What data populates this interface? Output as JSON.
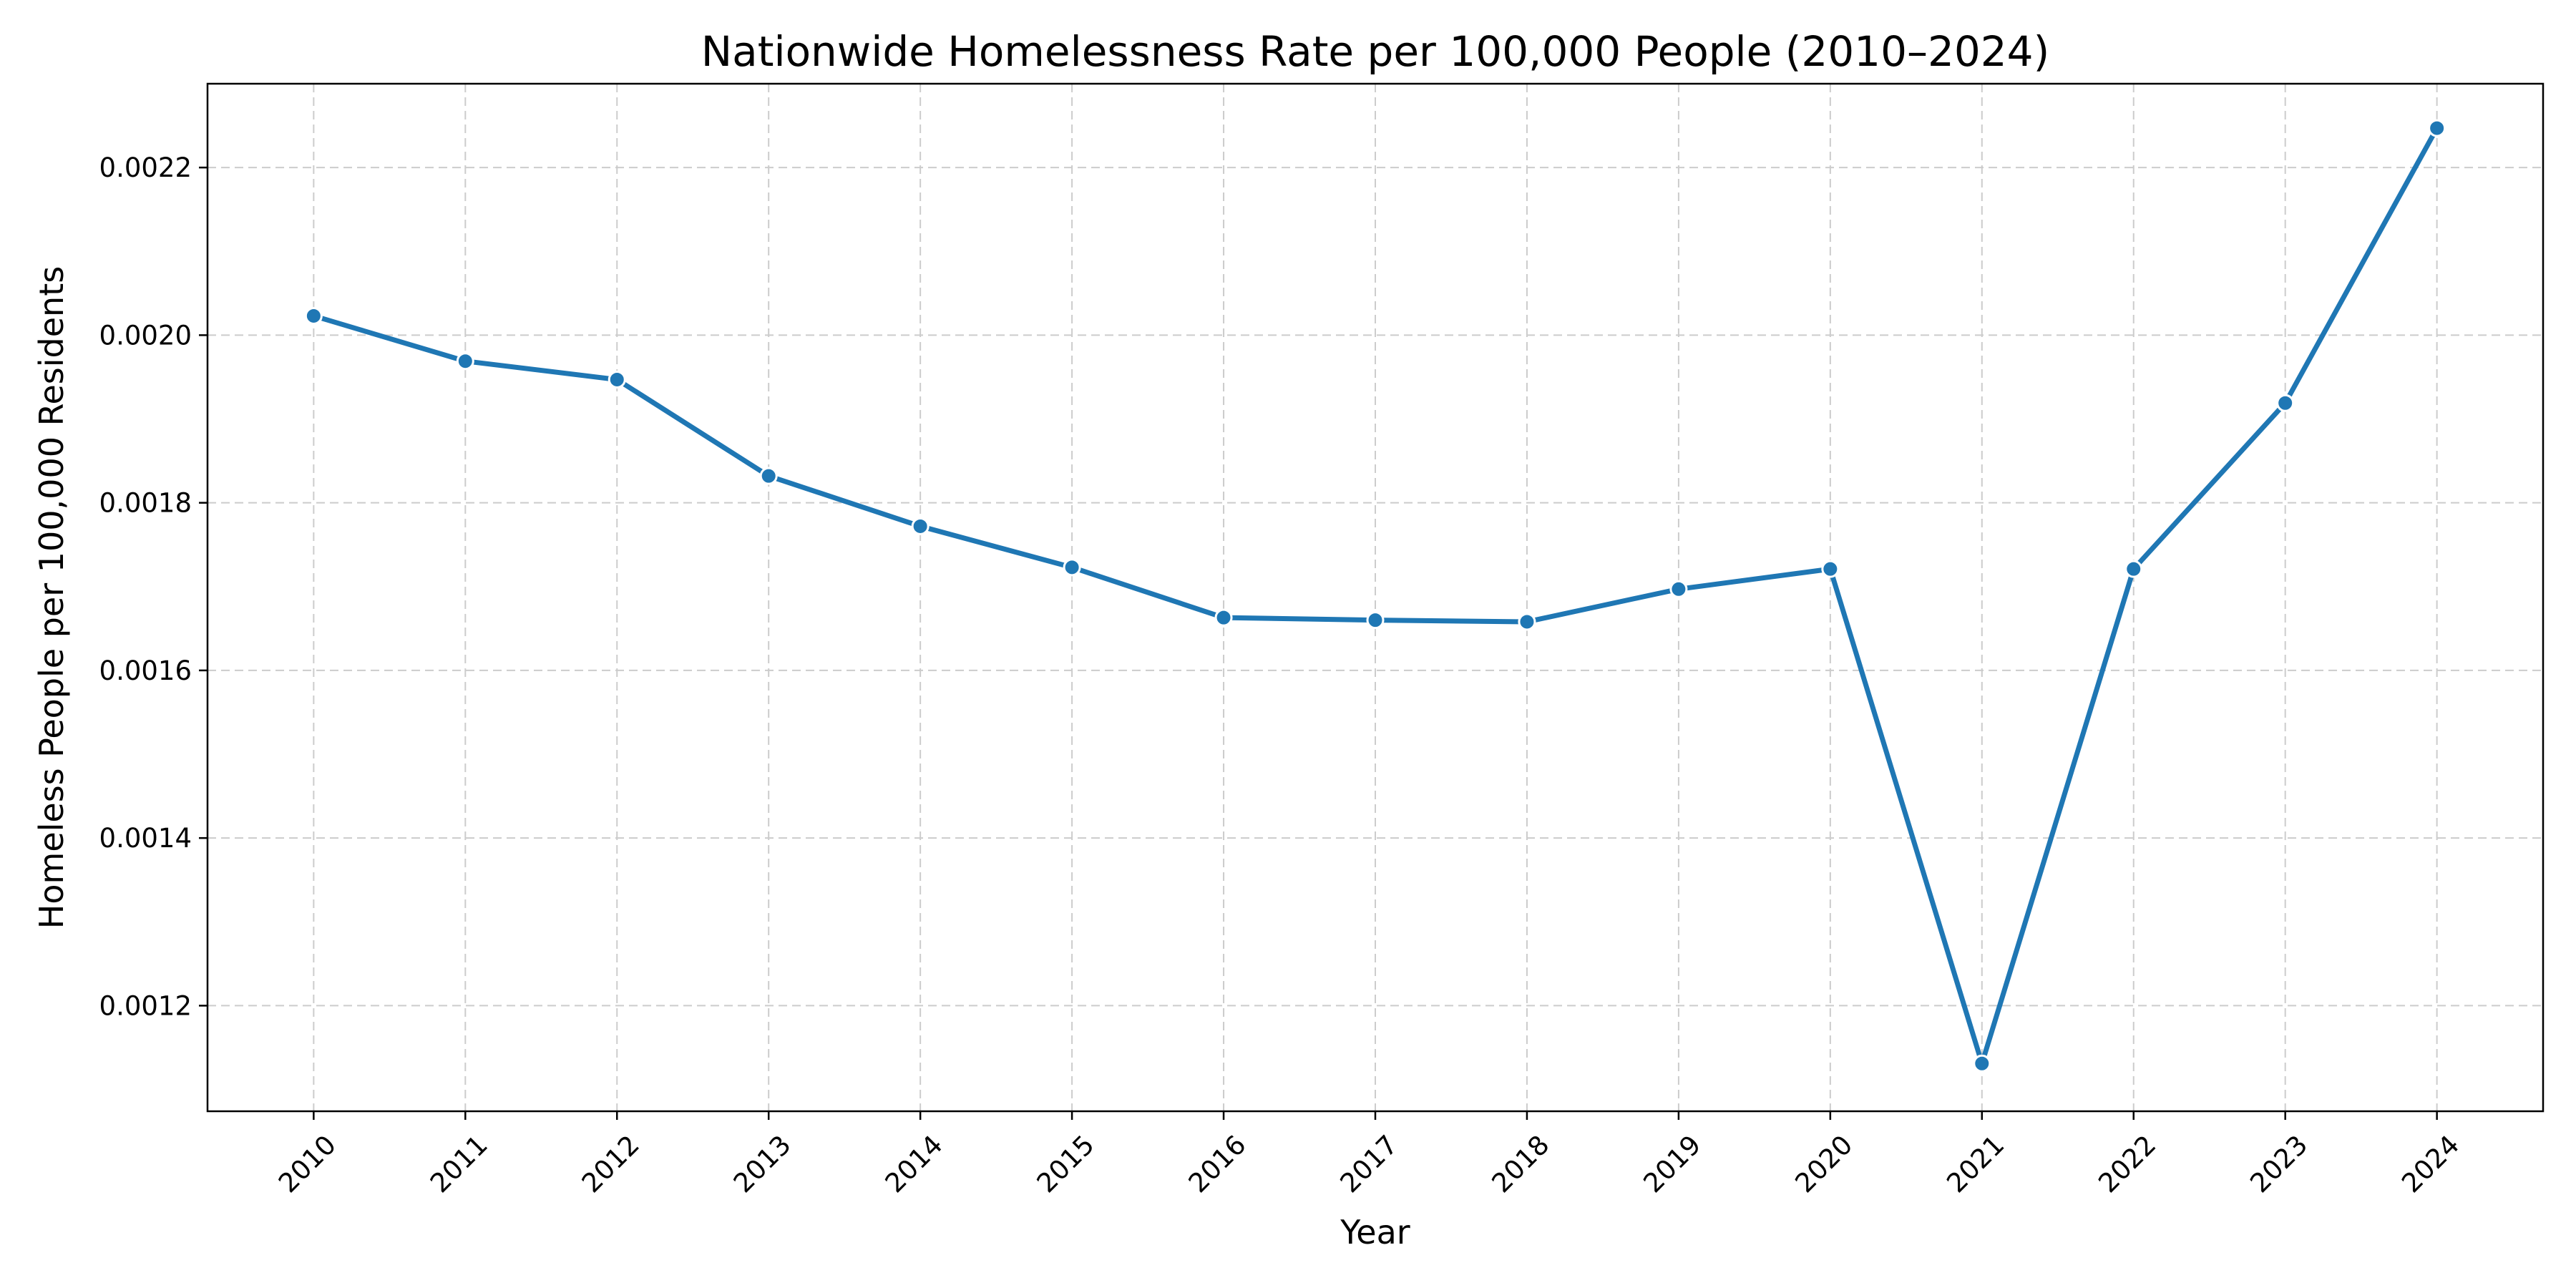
{
  "chart_data": {
    "type": "line",
    "title": "Nationwide Homelessness Rate per 100,000 People (2010–2024)",
    "xlabel": "Year",
    "ylabel": "Homeless People per 100,000 Residents",
    "x": [
      2010,
      2011,
      2012,
      2013,
      2014,
      2015,
      2016,
      2017,
      2018,
      2019,
      2020,
      2021,
      2022,
      2023,
      2024
    ],
    "x_tick_labels": [
      "2010",
      "2011",
      "2012",
      "2013",
      "2014",
      "2015",
      "2016",
      "2017",
      "2018",
      "2019",
      "2020",
      "2021",
      "2022",
      "2023",
      "2024"
    ],
    "series": [
      {
        "values": [
          0.002023,
          0.001969,
          0.001947,
          0.001832,
          0.001772,
          0.001723,
          0.001663,
          0.00166,
          0.001658,
          0.001697,
          0.001721,
          0.001131,
          0.001721,
          0.001919,
          0.002247
        ]
      }
    ],
    "y_ticks": [
      0.0012,
      0.0014,
      0.0016,
      0.0018,
      0.002,
      0.0022
    ],
    "y_tick_labels": [
      "0.0012",
      "0.0014",
      "0.0016",
      "0.0018",
      "0.0020",
      "0.0022"
    ],
    "xlim": [
      2009.3,
      2024.7
    ],
    "ylim": [
      0.001074,
      0.0023
    ],
    "grid": true,
    "line_color": "#1f77b4",
    "marker_edge_color": "#ffffff",
    "grid_color": "#cccccc"
  }
}
